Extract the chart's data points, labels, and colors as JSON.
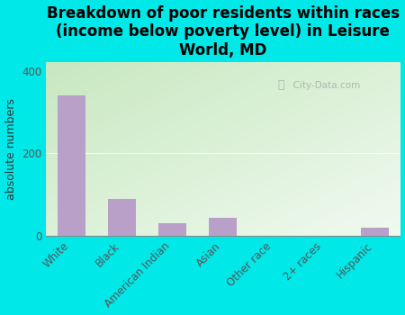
{
  "title": "Breakdown of poor residents within races\n(income below poverty level) in Leisure\nWorld, MD",
  "categories": [
    "White",
    "Black",
    "American Indian",
    "Asian",
    "Other race",
    "2+ races",
    "Hispanic"
  ],
  "values": [
    340,
    90,
    30,
    45,
    0,
    0,
    20
  ],
  "bar_color": "#b8a0c8",
  "ylabel": "absolute numbers",
  "ylim": [
    0,
    420
  ],
  "yticks": [
    0,
    200,
    400
  ],
  "background_color": "#00e8e8",
  "plot_bg_top_left": "#c8e8c0",
  "plot_bg_bottom_right": "#f0faf0",
  "watermark": "City-Data.com",
  "title_fontsize": 12,
  "ylabel_fontsize": 9,
  "tick_fontsize": 8.5
}
